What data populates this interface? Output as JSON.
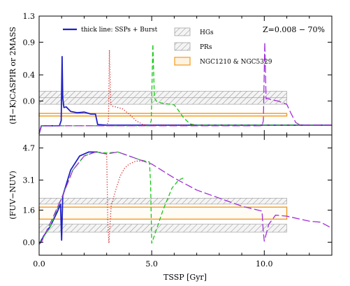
{
  "chart_data": [
    {
      "type": "line",
      "panel": "top",
      "ylabel": "(H−K)CASPIR or 2MASS",
      "xlim": [
        0,
        13
      ],
      "ylim": [
        -0.52,
        1.3
      ],
      "yticks": [
        1.3,
        0.9,
        0.4,
        0.0
      ],
      "annotation": "Z=0.008 − 70%",
      "legend": {
        "line_item": "thick line: SSPs + Burst",
        "box_items": [
          {
            "label": "HGs",
            "style": "hatch-gray"
          },
          {
            "label": "PRs",
            "style": "hatch-gray"
          },
          {
            "label": "NGC1210 & NGC5329",
            "style": "orange"
          }
        ]
      },
      "bands": [
        {
          "label": "HGs",
          "x": [
            0,
            11
          ],
          "y": [
            0.05,
            0.15
          ]
        },
        {
          "label": "PRs",
          "x": [
            0,
            11
          ],
          "y": [
            -0.05,
            0.05
          ]
        },
        {
          "label": "NGC1210 & NGC5329",
          "x": [
            0,
            11
          ],
          "y": [
            -0.23,
            -0.19
          ]
        }
      ],
      "series": [
        {
          "color": "#1f1fc8",
          "dash": "solid",
          "x": [
            0.0,
            0.1,
            0.2,
            0.5,
            0.9,
            0.98,
            1.02,
            1.05,
            1.1,
            1.2,
            1.4,
            1.7,
            2.0,
            2.3,
            2.5,
            2.6,
            3.0,
            5.0,
            8.0,
            11.0,
            13.0
          ],
          "y": [
            -0.5,
            -0.38,
            -0.38,
            -0.38,
            -0.38,
            -0.3,
            0.68,
            0.05,
            -0.1,
            -0.09,
            -0.16,
            -0.18,
            -0.17,
            -0.2,
            -0.2,
            -0.36,
            -0.37,
            -0.37,
            -0.37,
            -0.37,
            -0.37
          ]
        },
        {
          "color": "#d22020",
          "dash": "dot",
          "x": [
            0.0,
            0.1,
            0.2,
            1.0,
            2.0,
            3.0,
            3.08,
            3.12,
            3.18,
            3.25,
            3.4,
            3.7,
            4.0,
            4.3,
            4.6,
            5.0,
            6.0,
            8.0,
            11.0,
            13.0
          ],
          "y": [
            -0.5,
            -0.38,
            -0.38,
            -0.38,
            -0.38,
            -0.38,
            -0.3,
            0.78,
            -0.05,
            -0.08,
            -0.09,
            -0.12,
            -0.2,
            -0.3,
            -0.36,
            -0.37,
            -0.37,
            -0.37,
            -0.37,
            -0.37
          ]
        },
        {
          "color": "#14c814",
          "dash": "dash",
          "x": [
            0.0,
            0.1,
            0.2,
            1.0,
            3.0,
            4.9,
            4.98,
            5.05,
            5.12,
            5.2,
            5.4,
            5.8,
            6.0,
            6.2,
            6.4,
            6.7,
            7.0,
            9.0,
            11.0,
            13.0
          ],
          "y": [
            -0.5,
            -0.38,
            -0.38,
            -0.38,
            -0.38,
            -0.38,
            -0.3,
            0.87,
            0.05,
            0.0,
            -0.03,
            -0.05,
            -0.06,
            -0.15,
            -0.25,
            -0.35,
            -0.37,
            -0.37,
            -0.37,
            -0.37
          ]
        },
        {
          "color": "#a12fd6",
          "dash": "longdash",
          "x": [
            0.0,
            0.1,
            0.2,
            1.0,
            3.0,
            6.0,
            9.9,
            9.96,
            10.02,
            10.08,
            10.15,
            10.3,
            10.6,
            11.0,
            11.2,
            11.4,
            11.6,
            12.0,
            13.0
          ],
          "y": [
            -0.5,
            -0.38,
            -0.38,
            -0.38,
            -0.38,
            -0.38,
            -0.38,
            -0.3,
            0.9,
            0.03,
            0.04,
            0.02,
            0.0,
            -0.05,
            -0.2,
            -0.33,
            -0.37,
            -0.37,
            -0.37
          ]
        }
      ]
    },
    {
      "type": "line",
      "panel": "bottom",
      "ylabel": "(FUV−NUV)",
      "xlabel": "TSSP [Gyr]",
      "xlim": [
        0,
        13
      ],
      "ylim": [
        -0.65,
        5.35
      ],
      "yticks": [
        4.7,
        3.1,
        1.6,
        0.0
      ],
      "xticks": [
        0.0,
        5.0,
        10.0
      ],
      "bands": [
        {
          "label": "HGs",
          "x": [
            0,
            11
          ],
          "y": [
            1.9,
            2.2
          ]
        },
        {
          "label": "PRs",
          "x": [
            0,
            11
          ],
          "y": [
            0.5,
            0.9
          ]
        },
        {
          "label": "NGC1210 & NGC5329",
          "x": [
            0,
            11
          ],
          "y": [
            1.15,
            1.75
          ]
        }
      ],
      "series": [
        {
          "color": "#1f1fc8",
          "dash": "solid",
          "x": [
            0.0,
            0.2,
            0.5,
            0.8,
            0.95,
            1.0,
            1.05,
            1.1,
            1.4,
            1.8,
            2.2,
            2.6
          ],
          "y": [
            -0.1,
            0.3,
            0.8,
            1.5,
            1.9,
            0.1,
            2.3,
            2.5,
            3.6,
            4.3,
            4.5,
            4.5
          ]
        },
        {
          "color": "#d22020",
          "dash": "dot",
          "x": [
            3.0,
            3.05,
            3.1,
            3.2,
            3.4,
            3.6,
            3.8,
            4.0,
            4.3,
            4.6
          ],
          "y": [
            4.4,
            1.0,
            -0.05,
            1.8,
            2.6,
            3.3,
            3.7,
            3.9,
            4.05,
            4.05
          ]
        },
        {
          "color": "#14c814",
          "dash": "dash",
          "x": [
            0.0,
            0.5,
            1.0,
            1.5,
            2.0,
            2.5,
            3.0,
            3.5,
            4.0,
            4.5,
            4.9,
            4.95,
            5.0,
            5.2,
            5.5,
            5.9,
            6.2,
            6.4
          ],
          "y": [
            -0.1,
            0.8,
            2.2,
            3.6,
            4.3,
            4.5,
            4.45,
            4.5,
            4.3,
            4.1,
            4.0,
            3.0,
            -0.05,
            0.6,
            1.6,
            2.7,
            3.1,
            3.2
          ]
        },
        {
          "color": "#a12fd6",
          "dash": "longdash",
          "x": [
            0.0,
            0.1,
            0.3,
            0.6,
            1.0,
            1.5,
            2.0,
            2.5,
            3.0,
            3.5,
            4.0,
            5.0,
            6.0,
            7.0,
            8.0,
            9.0,
            9.9,
            9.95,
            10.0,
            10.2,
            10.5,
            11.0,
            12.0,
            12.5,
            13.0
          ],
          "y": [
            -0.1,
            0.0,
            0.5,
            1.2,
            2.2,
            3.6,
            4.3,
            4.5,
            4.4,
            4.5,
            4.3,
            3.9,
            3.2,
            2.6,
            2.2,
            1.8,
            1.55,
            0.6,
            0.05,
            0.9,
            1.35,
            1.3,
            1.05,
            1.0,
            0.7
          ]
        }
      ]
    }
  ]
}
